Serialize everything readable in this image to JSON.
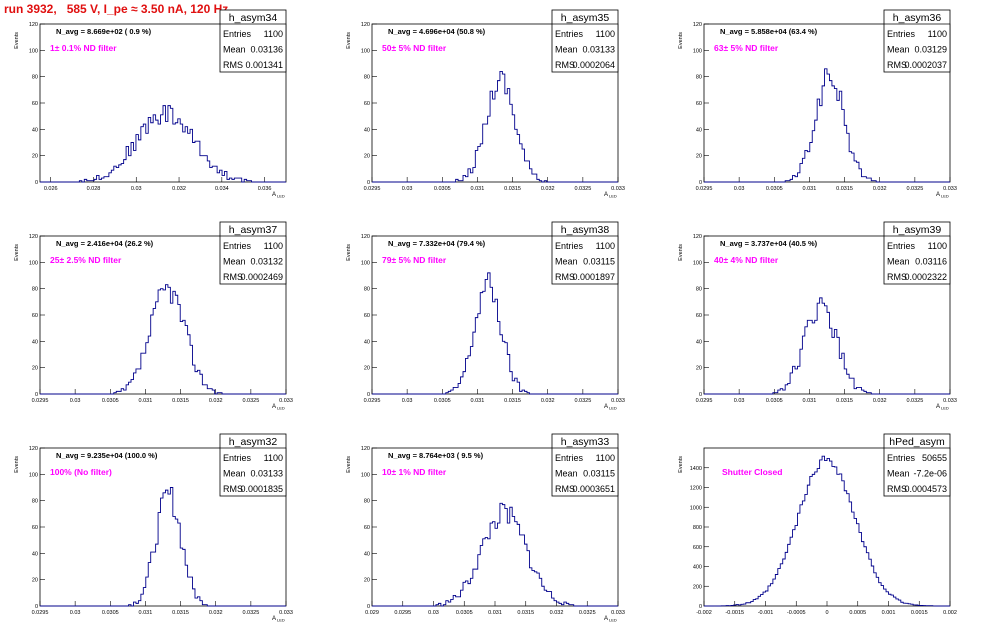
{
  "run_title": "run 3932,   585 V, I_pe ≈ 3.50 nA, 120 Hz",
  "colors": {
    "line": "#00008b",
    "annotation": "#ff00ff",
    "title": "#e01010",
    "axis": "#000000"
  },
  "chart_data": [
    {
      "type": "histogram",
      "name": "h_asym34",
      "ylabel": "Events",
      "xlabel": "A_LED",
      "navg": "N_avg = 8.669e+02 ( 0.9 %)",
      "note": "1± 0.1% ND filter",
      "stats": {
        "Entries": "1100",
        "Mean": "0.03136",
        "RMS": "0.001341"
      },
      "xlim": [
        0.0255,
        0.037
      ],
      "ylim": [
        0,
        120
      ],
      "xticks": [
        0.026,
        0.028,
        0.03,
        0.032,
        0.034,
        0.036
      ],
      "xtick_labels": [
        "0.026",
        "0.028",
        "0.03",
        "0.032",
        "0.034",
        "0.036"
      ],
      "yticks": [
        0,
        20,
        40,
        60,
        80,
        100,
        120
      ],
      "mean": 0.03136,
      "sigma": 0.001341,
      "peak": 52,
      "seed": 34
    },
    {
      "type": "histogram",
      "name": "h_asym35",
      "ylabel": "Events",
      "xlabel": "A_LED",
      "navg": "N_avg = 4.696e+04 (50.8 %)",
      "note": "50± 5% ND filter",
      "stats": {
        "Entries": "1100",
        "Mean": "0.03133",
        "RMS": "0.0002064"
      },
      "xlim": [
        0.0295,
        0.033
      ],
      "ylim": [
        0,
        120
      ],
      "xticks": [
        0.0295,
        0.03,
        0.0305,
        0.031,
        0.0315,
        0.032,
        0.0325,
        0.033
      ],
      "xtick_labels": [
        "0.0295",
        "0.03",
        "0.0305",
        "0.031",
        "0.0315",
        "0.032",
        "0.0325",
        "0.033"
      ],
      "yticks": [
        0,
        20,
        40,
        60,
        80,
        100,
        120
      ],
      "mean": 0.03133,
      "sigma": 0.0002064,
      "peak": 79,
      "seed": 35
    },
    {
      "type": "histogram",
      "name": "h_asym36",
      "ylabel": "Events",
      "xlabel": "A_LED",
      "navg": "N_avg = 5.858e+04 (63.4 %)",
      "note": "63± 5% ND filter",
      "stats": {
        "Entries": "1100",
        "Mean": "0.03129",
        "RMS": "0.0002037"
      },
      "xlim": [
        0.0295,
        0.033
      ],
      "ylim": [
        0,
        120
      ],
      "xticks": [
        0.0295,
        0.03,
        0.0305,
        0.031,
        0.0315,
        0.032,
        0.0325,
        0.033
      ],
      "xtick_labels": [
        "0.0295",
        "0.03",
        "0.0305",
        "0.031",
        "0.0315",
        "0.032",
        "0.0325",
        "0.033"
      ],
      "yticks": [
        0,
        20,
        40,
        60,
        80,
        100,
        120
      ],
      "mean": 0.03129,
      "sigma": 0.0002037,
      "peak": 80,
      "seed": 36
    },
    {
      "type": "histogram",
      "name": "h_asym37",
      "ylabel": "Events",
      "xlabel": "A_LED",
      "navg": "N_avg = 2.416e+04 (26.2 %)",
      "note": "25± 2.5% ND filter",
      "stats": {
        "Entries": "1100",
        "Mean": "0.03132",
        "RMS": "0.0002469"
      },
      "xlim": [
        0.0295,
        0.033
      ],
      "ylim": [
        0,
        120
      ],
      "xticks": [
        0.0295,
        0.03,
        0.0305,
        0.031,
        0.0315,
        0.032,
        0.0325,
        0.033
      ],
      "xtick_labels": [
        "0.0295",
        "0.03",
        "0.0305",
        "0.031",
        "0.0315",
        "0.032",
        "0.0325",
        "0.033"
      ],
      "yticks": [
        0,
        20,
        40,
        60,
        80,
        100,
        120
      ],
      "mean": 0.03132,
      "sigma": 0.0002469,
      "peak": 80,
      "seed": 37
    },
    {
      "type": "histogram",
      "name": "h_asym38",
      "ylabel": "Events",
      "xlabel": "A_LED",
      "navg": "N_avg = 7.332e+04 (79.4 %)",
      "note": "79± 5% ND filter",
      "stats": {
        "Entries": "1100",
        "Mean": "0.03115",
        "RMS": "0.0001897"
      },
      "xlim": [
        0.0295,
        0.033
      ],
      "ylim": [
        0,
        120
      ],
      "xticks": [
        0.0295,
        0.03,
        0.0305,
        0.031,
        0.0315,
        0.032,
        0.0325,
        0.033
      ],
      "xtick_labels": [
        "0.0295",
        "0.03",
        "0.0305",
        "0.031",
        "0.0315",
        "0.032",
        "0.0325",
        "0.033"
      ],
      "yticks": [
        0,
        20,
        40,
        60,
        80,
        100,
        120
      ],
      "mean": 0.03115,
      "sigma": 0.0001897,
      "peak": 83,
      "seed": 38
    },
    {
      "type": "histogram",
      "name": "h_asym39",
      "ylabel": "Events",
      "xlabel": "A_LED",
      "navg": "N_avg = 3.737e+04 (40.5 %)",
      "note": "40± 4% ND filter",
      "stats": {
        "Entries": "1100",
        "Mean": "0.03116",
        "RMS": "0.0002322"
      },
      "xlim": [
        0.0295,
        0.033
      ],
      "ylim": [
        0,
        120
      ],
      "xticks": [
        0.0295,
        0.03,
        0.0305,
        0.031,
        0.0315,
        0.032,
        0.0325,
        0.033
      ],
      "xtick_labels": [
        "0.0295",
        "0.03",
        "0.0305",
        "0.031",
        "0.0315",
        "0.032",
        "0.0325",
        "0.033"
      ],
      "yticks": [
        0,
        20,
        40,
        60,
        80,
        100,
        120
      ],
      "mean": 0.03116,
      "sigma": 0.0002322,
      "peak": 66,
      "seed": 39
    },
    {
      "type": "histogram",
      "name": "h_asym32",
      "ylabel": "Events",
      "xlabel": "A_LED",
      "navg": "N_avg = 9.235e+04 (100.0 %)",
      "note": "100% (No filter)",
      "stats": {
        "Entries": "1100",
        "Mean": "0.03133",
        "RMS": "0.0001835"
      },
      "xlim": [
        0.0295,
        0.033
      ],
      "ylim": [
        0,
        120
      ],
      "xticks": [
        0.0295,
        0.03,
        0.0305,
        0.031,
        0.0315,
        0.032,
        0.0325,
        0.033
      ],
      "xtick_labels": [
        "0.0295",
        "0.03",
        "0.0305",
        "0.031",
        "0.0315",
        "0.032",
        "0.0325",
        "0.033"
      ],
      "yticks": [
        0,
        20,
        40,
        60,
        80,
        100,
        120
      ],
      "mean": 0.03133,
      "sigma": 0.0001835,
      "peak": 84,
      "seed": 32
    },
    {
      "type": "histogram",
      "name": "h_asym33",
      "ylabel": "Events",
      "xlabel": "A_LED",
      "navg": "N_avg = 8.764e+03 ( 9.5 %)",
      "note": "10± 1% ND filter",
      "stats": {
        "Entries": "1100",
        "Mean": "0.03115",
        "RMS": "0.0003651"
      },
      "xlim": [
        0.029,
        0.033
      ],
      "ylim": [
        0,
        120
      ],
      "xticks": [
        0.029,
        0.0295,
        0.03,
        0.0305,
        0.031,
        0.0315,
        0.032,
        0.0325,
        0.033
      ],
      "xtick_labels": [
        "0.029",
        "0.0295",
        "0.03",
        "0.0305",
        "0.031",
        "0.0315",
        "0.032",
        "0.0325",
        "0.033"
      ],
      "yticks": [
        0,
        20,
        40,
        60,
        80,
        100,
        120
      ],
      "mean": 0.03115,
      "sigma": 0.0003651,
      "peak": 70,
      "seed": 33
    },
    {
      "type": "histogram",
      "name": "hPed_asym",
      "ylabel": "Events",
      "xlabel": "",
      "navg": "",
      "note": "Shutter Closed",
      "stats": {
        "Entries": "50655",
        "Mean": "-7.2e-06",
        "RMS": "0.0004573"
      },
      "xlim": [
        -0.002,
        0.002
      ],
      "ylim": [
        0,
        1600
      ],
      "xticks": [
        -0.002,
        -0.0015,
        -0.001,
        -0.0005,
        0,
        0.0005,
        0.001,
        0.0015,
        0.002
      ],
      "xtick_labels": [
        "-0.002",
        "-0.0015",
        "-0.001",
        "-0.0005",
        "0",
        "0.0005",
        "0.001",
        "0.0015",
        "0.002"
      ],
      "yticks": [
        0,
        200,
        400,
        600,
        800,
        1000,
        1200,
        1400
      ],
      "mean": -7.2e-06,
      "sigma": 0.00046,
      "peak": 1490,
      "seed": 99
    }
  ]
}
